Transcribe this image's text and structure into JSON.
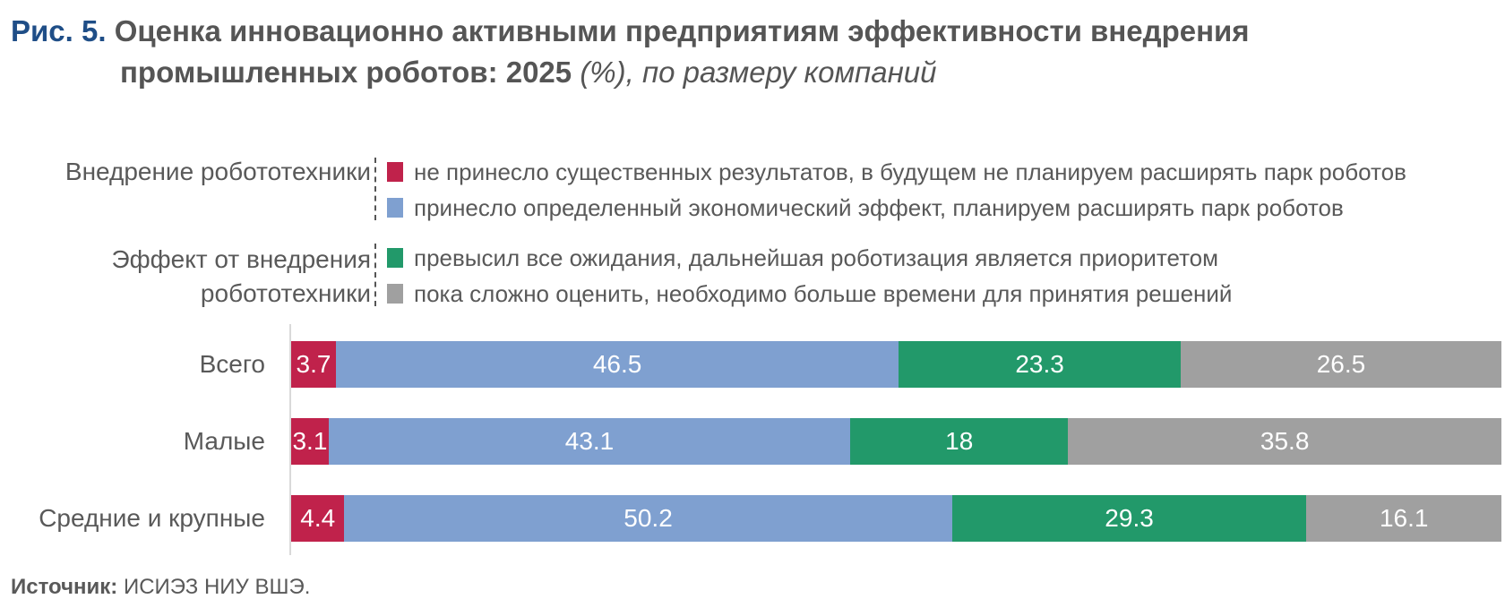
{
  "title": {
    "fig": "Рис. 5.",
    "line1": "Оценка инновационно активными предприятиям эффективности внедрения",
    "line2_bold": "промышленных роботов: 2025",
    "line2_italic": "(%), по размеру компаний"
  },
  "legend": {
    "group1_label": "Внедрение робототехники",
    "group2_label_line1": "Эффект от внедрения",
    "group2_label_line2": "робототехники",
    "items": [
      {
        "label": "не принесло существенных результатов, в будущем не планируем расширять парк роботов",
        "color": "#c0224b"
      },
      {
        "label": "принесло определенный экономический эффект, планируем расширять парк роботов",
        "color": "#7fa0d0"
      },
      {
        "label": "превысил все ожидания, дальнейшая роботизация является приоритетом",
        "color": "#22996a"
      },
      {
        "label": "пока сложно оценить, необходимо больше времени для принятия решений",
        "color": "#a0a0a0"
      }
    ]
  },
  "chart_data": {
    "type": "bar",
    "orientation": "horizontal",
    "stacked": true,
    "categories": [
      "Всего",
      "Малые",
      "Средние и крупные"
    ],
    "series": [
      {
        "name": "не принесло существенных результатов, в будущем не планируем расширять парк роботов",
        "values": [
          3.7,
          3.1,
          4.4
        ],
        "labels": [
          "3.7",
          "3.1",
          "4.4"
        ]
      },
      {
        "name": "принесло определенный экономический эффект, планируем расширять парк роботов",
        "values": [
          46.5,
          43.1,
          50.2
        ],
        "labels": [
          "46.5",
          "43.1",
          "50.2"
        ]
      },
      {
        "name": "превысил все ожидания, дальнейшая роботизация является приоритетом",
        "values": [
          23.3,
          18,
          29.3
        ],
        "labels": [
          "23.3",
          "18",
          "29.3"
        ]
      },
      {
        "name": "пока сложно оценить, необходимо больше времени для принятия решений",
        "values": [
          26.5,
          35.8,
          16.1
        ],
        "labels": [
          "26.5",
          "35.8",
          "16.1"
        ]
      }
    ],
    "xlim": [
      0,
      100
    ],
    "unit": "%"
  },
  "source": {
    "label": "Источник:",
    "text": "ИСИЭЗ НИУ ВШЭ."
  }
}
